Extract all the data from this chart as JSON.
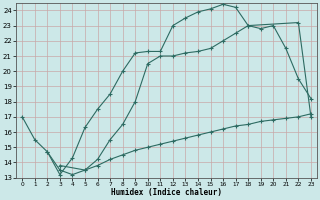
{
  "xlabel": "Humidex (Indice chaleur)",
  "bg_color": "#cce8e8",
  "grid_color": "#b8d4d4",
  "line_color": "#2d6b62",
  "xlim": [
    -0.5,
    23.5
  ],
  "ylim": [
    13,
    24.5
  ],
  "xticks": [
    0,
    1,
    2,
    3,
    4,
    5,
    6,
    7,
    8,
    9,
    10,
    11,
    12,
    13,
    14,
    15,
    16,
    17,
    18,
    19,
    20,
    21,
    22,
    23
  ],
  "yticks": [
    13,
    14,
    15,
    16,
    17,
    18,
    19,
    20,
    21,
    22,
    23,
    24
  ],
  "curve1_x": [
    0,
    1,
    2,
    3,
    4,
    5,
    6,
    7,
    8,
    9,
    10,
    11,
    12,
    13,
    14,
    15,
    16,
    17,
    18,
    22,
    23
  ],
  "curve1_y": [
    17.0,
    15.5,
    14.7,
    13.2,
    14.3,
    16.3,
    17.5,
    18.5,
    20.0,
    21.2,
    21.3,
    21.3,
    23.0,
    23.5,
    23.9,
    24.1,
    24.4,
    24.2,
    23.0,
    23.2,
    17.0
  ],
  "curve2_x": [
    2,
    3,
    4,
    5,
    6,
    7,
    8,
    9,
    10,
    11,
    12,
    13,
    14,
    15,
    16,
    17,
    18,
    19,
    20,
    21,
    22,
    23
  ],
  "curve2_y": [
    14.7,
    13.5,
    13.2,
    13.5,
    14.2,
    15.5,
    16.5,
    18.0,
    20.5,
    21.0,
    21.0,
    21.2,
    21.3,
    21.5,
    22.0,
    22.5,
    23.0,
    22.8,
    23.0,
    21.5,
    19.5,
    18.2
  ],
  "curve3_x": [
    3,
    5,
    6,
    7,
    8,
    9,
    10,
    11,
    12,
    13,
    14,
    15,
    16,
    17,
    18,
    19,
    20,
    21,
    22,
    23
  ],
  "curve3_y": [
    13.8,
    13.5,
    13.8,
    14.2,
    14.5,
    14.8,
    15.0,
    15.2,
    15.4,
    15.6,
    15.8,
    16.0,
    16.2,
    16.4,
    16.5,
    16.7,
    16.8,
    16.9,
    17.0,
    17.2
  ]
}
